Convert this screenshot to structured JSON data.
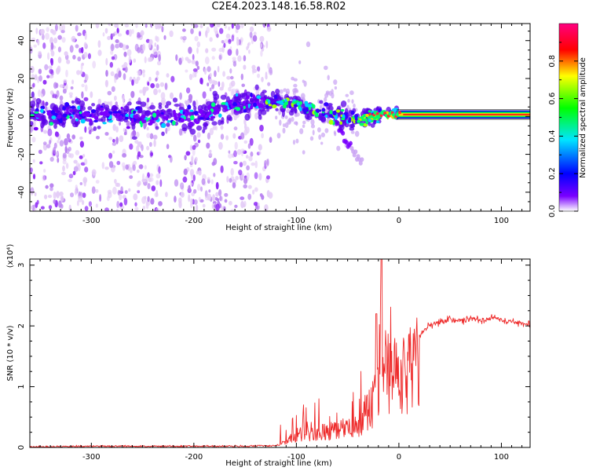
{
  "title": "C2E4.2023.148.16.58.R02",
  "chart_data": [
    {
      "type": "heatmap",
      "xlabel": "Height of straight line (km)",
      "ylabel": "Frequency (Hz)",
      "xlim": [
        -360,
        128
      ],
      "ylim": [
        -50,
        49
      ],
      "xticks": [
        -300,
        -200,
        -100,
        0,
        100
      ],
      "xtick_labels": [
        "-300",
        "-200",
        "-100",
        "0",
        "100"
      ],
      "yticks": [
        -40,
        -20,
        0,
        20,
        40
      ],
      "ytick_labels": [
        "-40",
        "-20",
        "0",
        "20",
        "40"
      ],
      "colorbar": {
        "label": "Normalized spectral amplitude",
        "range": [
          0,
          1
        ],
        "ticks": [
          0.0,
          0.2,
          0.4,
          0.6,
          0.8
        ],
        "tick_labels": [
          "0.0",
          "0.2",
          "0.4",
          "0.6",
          "0.8"
        ],
        "colormap": [
          "#ffffff",
          "#e9d6f6",
          "#7a00ff",
          "#0000ff",
          "#00e5ff",
          "#00ff00",
          "#ffff00",
          "#ff0000",
          "#ff0080"
        ]
      },
      "ridge": {
        "x": [
          -360,
          -300,
          -250,
          -200,
          -160,
          -130,
          -100,
          -80,
          -60,
          -40,
          -20,
          0,
          50,
          100,
          128
        ],
        "y": [
          1,
          1,
          0,
          0,
          6,
          8,
          6,
          3,
          0,
          -2,
          1,
          1,
          1,
          1,
          1
        ]
      },
      "grid": false
    },
    {
      "type": "line",
      "xlabel": "Height of straight line (km)",
      "ylabel": "SNR (10 * v/v)",
      "y_multiplier": "(x10⁴)",
      "xlim": [
        -360,
        128
      ],
      "ylim": [
        0,
        3.1
      ],
      "xticks": [
        -300,
        -200,
        -100,
        0,
        100
      ],
      "xtick_labels": [
        "-300",
        "-200",
        "-100",
        "0",
        "100"
      ],
      "yticks": [
        0,
        1,
        2,
        3
      ],
      "ytick_labels": [
        "0",
        "1",
        "2",
        "3"
      ],
      "series": [
        {
          "color": "#ee2a2a",
          "x": [
            -360,
            -300,
            -250,
            -200,
            -150,
            -120,
            -110,
            -100,
            -90,
            -80,
            -70,
            -60,
            -50,
            -40,
            -35,
            -30,
            -25,
            -20,
            -17,
            -15,
            -10,
            -5,
            0,
            10,
            20,
            30,
            40,
            50,
            60,
            70,
            80,
            90,
            95,
            100,
            110,
            120,
            128
          ],
          "y": [
            0.01,
            0.02,
            0.02,
            0.02,
            0.02,
            0.03,
            0.12,
            0.25,
            0.3,
            0.3,
            0.32,
            0.35,
            0.38,
            0.45,
            0.6,
            0.75,
            0.95,
            1.3,
            3.1,
            1.5,
            1.6,
            1.5,
            1.45,
            1.6,
            1.85,
            2.0,
            2.07,
            2.1,
            2.1,
            2.1,
            2.1,
            2.12,
            2.15,
            2.08,
            2.07,
            2.05,
            2.04
          ]
        }
      ],
      "grid": false
    }
  ]
}
